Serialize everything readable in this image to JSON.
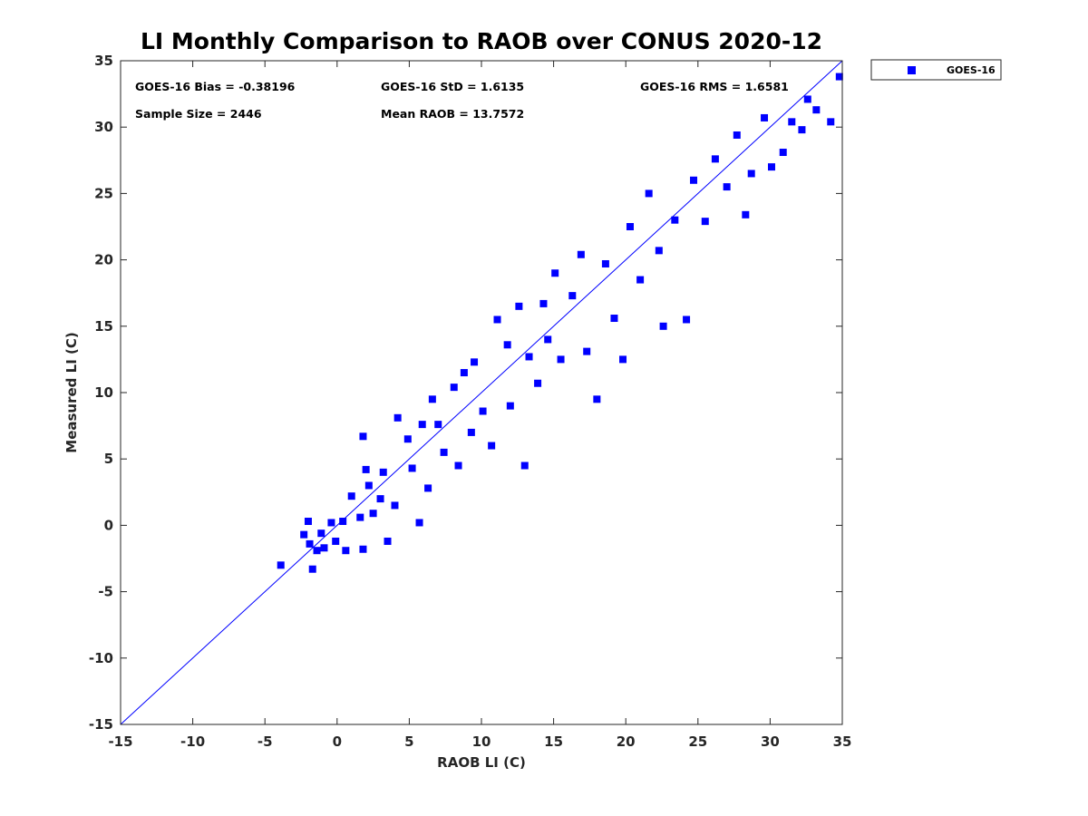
{
  "colors": {
    "series": "#0000ff",
    "identity_line": "#0000ff",
    "axis": "#262626",
    "background": "#ffffff"
  },
  "chart_data": {
    "type": "scatter",
    "title": "LI Monthly Comparison to RAOB over CONUS 2020-12",
    "xlabel": "RAOB LI (C)",
    "ylabel": "Measured LI (C)",
    "xlim": [
      -15,
      35
    ],
    "ylim": [
      -15,
      35
    ],
    "xticks": [
      -15,
      -10,
      -5,
      0,
      5,
      10,
      15,
      20,
      25,
      30,
      35
    ],
    "yticks": [
      -15,
      -10,
      -5,
      0,
      5,
      10,
      15,
      20,
      25,
      30,
      35
    ],
    "xtick_labels": [
      "-15",
      "-10",
      "-5",
      "0",
      "5",
      "10",
      "15",
      "20",
      "25",
      "30",
      "35"
    ],
    "ytick_labels": [
      "-15",
      "-10",
      "-5",
      "0",
      "5",
      "10",
      "15",
      "20",
      "25",
      "30",
      "35"
    ],
    "grid": false,
    "legend": {
      "position": "outside-top-right",
      "entries": [
        "GOES-16"
      ]
    },
    "reference_line": {
      "type": "identity",
      "from": [
        -15,
        -15
      ],
      "to": [
        35,
        35
      ]
    },
    "annotations": [
      "GOES-16 Bias = -0.38196",
      "GOES-16 StD = 1.6135",
      "GOES-16 RMS = 1.6581",
      "Sample Size = 2446",
      "Mean RAOB = 13.7572"
    ],
    "series": [
      {
        "name": "GOES-16",
        "marker": "square",
        "sample_size": 2446,
        "mean_x": 13.7572,
        "bias": -0.38196,
        "std": 1.6135,
        "x_range": [
          -3.9,
          34.8
        ],
        "points": [
          [
            -3.9,
            -3.0
          ],
          [
            -2.3,
            -0.7
          ],
          [
            -2.0,
            0.3
          ],
          [
            -1.9,
            -1.4
          ],
          [
            -1.7,
            -3.3
          ],
          [
            -1.4,
            -1.9
          ],
          [
            -1.1,
            -0.6
          ],
          [
            -0.9,
            -1.7
          ],
          [
            -0.4,
            0.2
          ],
          [
            -0.1,
            -1.2
          ],
          [
            0.4,
            0.3
          ],
          [
            0.6,
            -1.9
          ],
          [
            1.0,
            2.2
          ],
          [
            1.6,
            0.6
          ],
          [
            1.8,
            -1.8
          ],
          [
            2.2,
            3.0
          ],
          [
            2.5,
            0.9
          ],
          [
            2.0,
            4.2
          ],
          [
            1.8,
            6.7
          ],
          [
            3.0,
            2.0
          ],
          [
            3.2,
            4.0
          ],
          [
            3.5,
            -1.2
          ],
          [
            4.0,
            1.5
          ],
          [
            4.2,
            8.1
          ],
          [
            4.9,
            6.5
          ],
          [
            5.2,
            4.3
          ],
          [
            5.7,
            0.2
          ],
          [
            5.9,
            7.6
          ],
          [
            6.3,
            2.8
          ],
          [
            6.6,
            9.5
          ],
          [
            7.0,
            7.6
          ],
          [
            7.4,
            5.5
          ],
          [
            8.1,
            10.4
          ],
          [
            8.4,
            4.5
          ],
          [
            8.8,
            11.5
          ],
          [
            9.3,
            7.0
          ],
          [
            9.5,
            12.3
          ],
          [
            10.1,
            8.6
          ],
          [
            10.7,
            6.0
          ],
          [
            11.1,
            15.5
          ],
          [
            11.8,
            13.6
          ],
          [
            12.0,
            9.0
          ],
          [
            12.6,
            16.5
          ],
          [
            13.0,
            4.5
          ],
          [
            13.3,
            12.7
          ],
          [
            13.9,
            10.7
          ],
          [
            14.3,
            16.7
          ],
          [
            14.6,
            14.0
          ],
          [
            15.1,
            19.0
          ],
          [
            15.5,
            12.5
          ],
          [
            16.3,
            17.3
          ],
          [
            16.9,
            20.4
          ],
          [
            17.3,
            13.1
          ],
          [
            18.0,
            9.5
          ],
          [
            18.6,
            19.7
          ],
          [
            19.2,
            15.6
          ],
          [
            19.8,
            12.5
          ],
          [
            20.3,
            22.5
          ],
          [
            21.0,
            18.5
          ],
          [
            21.6,
            25.0
          ],
          [
            22.3,
            20.7
          ],
          [
            22.6,
            15.0
          ],
          [
            23.4,
            23.0
          ],
          [
            24.2,
            15.5
          ],
          [
            24.7,
            26.0
          ],
          [
            25.5,
            22.9
          ],
          [
            26.2,
            27.6
          ],
          [
            27.0,
            25.5
          ],
          [
            27.7,
            29.4
          ],
          [
            28.3,
            23.4
          ],
          [
            28.7,
            26.5
          ],
          [
            29.6,
            30.7
          ],
          [
            30.1,
            27.0
          ],
          [
            30.9,
            28.1
          ],
          [
            31.5,
            30.4
          ],
          [
            32.2,
            29.8
          ],
          [
            32.6,
            32.1
          ],
          [
            33.2,
            31.3
          ],
          [
            34.2,
            30.4
          ],
          [
            34.8,
            33.8
          ]
        ]
      }
    ]
  }
}
